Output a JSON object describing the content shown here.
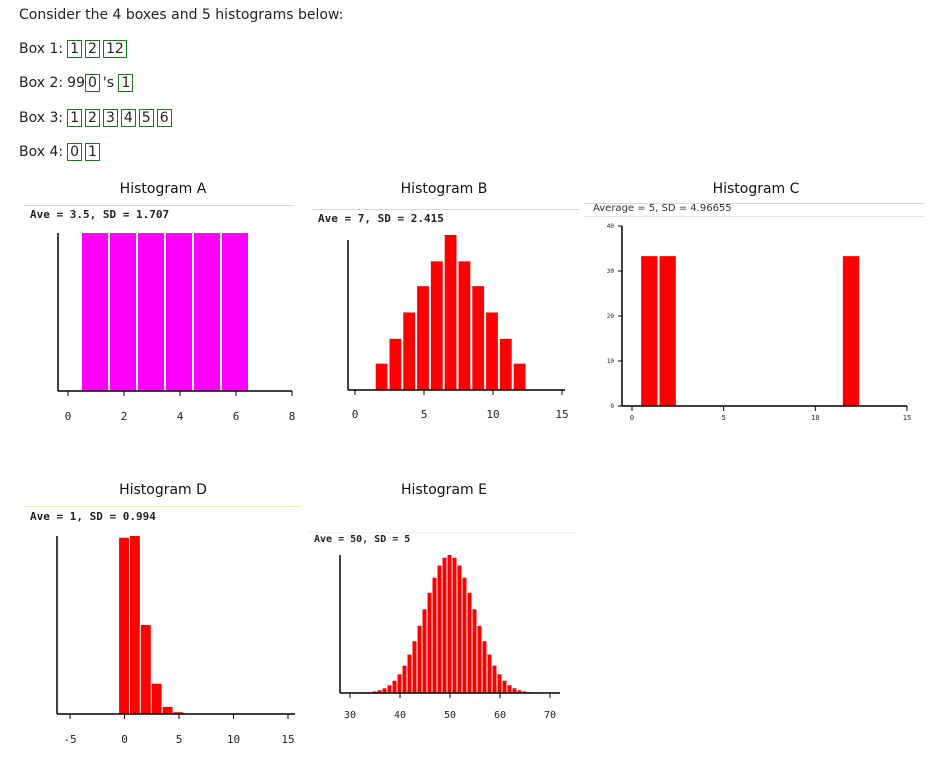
{
  "intro": "Consider the 4 boxes and 5 histograms below:",
  "boxes": [
    {
      "label": "Box 1:",
      "parts": [
        {
          "text": "1",
          "t": true
        },
        {
          "text": "2",
          "t": true
        },
        {
          "text": "12",
          "t": true
        }
      ]
    },
    {
      "label": "Box 2:",
      "parts": [
        {
          "text": "99",
          "t": false
        },
        {
          "text": "0",
          "t": true
        },
        {
          "text": "'s ",
          "t": false
        },
        {
          "text": "1",
          "t": true
        }
      ]
    },
    {
      "label": "Box 3:",
      "parts": [
        {
          "text": "1",
          "t": true
        },
        {
          "text": "2",
          "t": true
        },
        {
          "text": "3",
          "t": true
        },
        {
          "text": "4",
          "t": true
        },
        {
          "text": "5",
          "t": true
        },
        {
          "text": "6",
          "t": true
        }
      ]
    },
    {
      "label": "Box 4:",
      "parts": [
        {
          "text": "0",
          "t": true
        },
        {
          "text": "1",
          "t": true
        }
      ]
    }
  ],
  "colors": {
    "hist_a": "#ff00ff",
    "bars": "#ff0000",
    "ticket_border": "#1a7a1a"
  },
  "chart_data": [
    {
      "id": "A",
      "type": "bar",
      "title": "Histogram A",
      "stats": "Ave = 3.5, SD = 1.707",
      "xlim": [
        0,
        8
      ],
      "ylim": [
        0,
        1
      ],
      "xticks": [
        "0",
        "2",
        "4",
        "6",
        "8"
      ],
      "bins": [
        [
          0.5,
          1.5,
          1
        ],
        [
          1.5,
          2.5,
          1
        ],
        [
          2.5,
          3.5,
          1
        ],
        [
          3.5,
          4.5,
          1
        ],
        [
          4.5,
          5.5,
          1
        ],
        [
          5.5,
          6.5,
          1
        ]
      ]
    },
    {
      "id": "B",
      "type": "bar",
      "title": "Histogram B",
      "stats": "Ave = 7, SD = 2.415",
      "xlim": [
        0,
        15
      ],
      "ylim": [
        0,
        1
      ],
      "xticks": [
        "0",
        "5",
        "10",
        "15"
      ],
      "bins": [
        [
          1.5,
          2.5,
          0.17
        ],
        [
          2.5,
          3.5,
          0.33
        ],
        [
          3.5,
          4.5,
          0.5
        ],
        [
          4.5,
          5.5,
          0.67
        ],
        [
          5.5,
          6.5,
          0.83
        ],
        [
          6.5,
          7.5,
          1
        ],
        [
          7.5,
          8.5,
          0.83
        ],
        [
          8.5,
          9.5,
          0.67
        ],
        [
          9.5,
          10.5,
          0.5
        ],
        [
          10.5,
          11.5,
          0.33
        ],
        [
          11.5,
          12.5,
          0.17
        ]
      ]
    },
    {
      "id": "C",
      "type": "bar",
      "title": "Histogram C",
      "stats": "Average = 5, SD = 4.96655",
      "xlim": [
        0,
        15
      ],
      "ylim": [
        0,
        40
      ],
      "xticks": [
        "0",
        "5",
        "10",
        "15"
      ],
      "yticks": [
        "0",
        "10",
        "20",
        "30",
        "40"
      ],
      "bins": [
        [
          0.5,
          1.5,
          33.3
        ],
        [
          1.5,
          2.5,
          33.3
        ],
        [
          11.5,
          12.5,
          33.3
        ]
      ]
    },
    {
      "id": "D",
      "type": "bar",
      "title": "Histogram D",
      "stats": "Ave = 1, SD = 0.994",
      "xlim": [
        -5,
        15
      ],
      "ylim": [
        0,
        1
      ],
      "xticks": [
        "-5",
        "0",
        "5",
        "10",
        "15"
      ],
      "bins": [
        [
          -0.5,
          0.5,
          0.99
        ],
        [
          0.5,
          1.5,
          1
        ],
        [
          1.5,
          2.5,
          0.5
        ],
        [
          2.5,
          3.5,
          0.17
        ],
        [
          3.5,
          4.5,
          0.04
        ],
        [
          4.5,
          5.5,
          0.01
        ]
      ]
    },
    {
      "id": "E",
      "type": "bar",
      "title": "Histogram E",
      "stats": "Ave = 50, SD = 5",
      "xlim": [
        30,
        70
      ],
      "ylim": [
        0,
        1
      ],
      "xticks": [
        "30",
        "40",
        "50",
        "60",
        "70"
      ],
      "normal": {
        "mean": 50,
        "sd": 5,
        "from": 33,
        "to": 67
      }
    }
  ]
}
